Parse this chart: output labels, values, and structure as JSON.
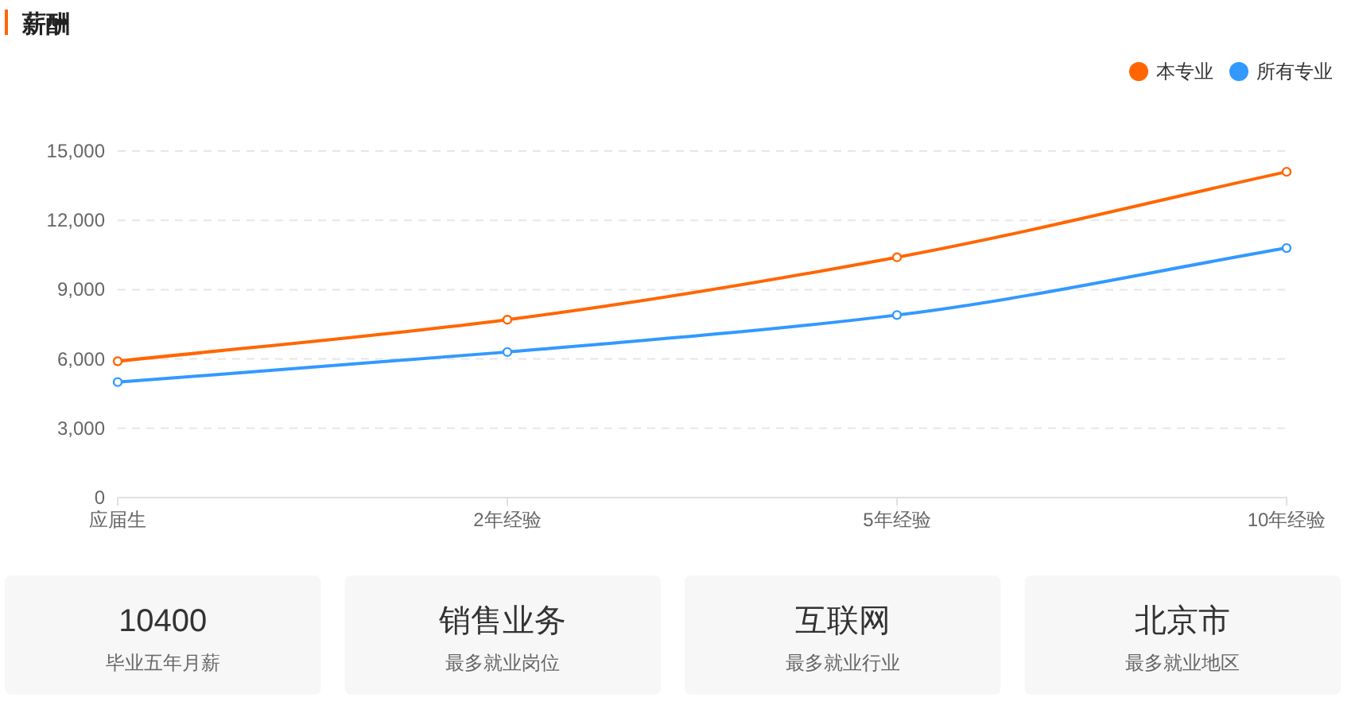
{
  "chart_data": [
    {
      "type": "line",
      "title": "薪酬",
      "categories": [
        "应届生",
        "2年经验",
        "5年经验",
        "10年经验"
      ],
      "series": [
        {
          "name": "本专业",
          "color": "#ff6600",
          "values": [
            5900,
            7700,
            10400,
            14100
          ]
        },
        {
          "name": "所有专业",
          "color": "#3399ff",
          "values": [
            5000,
            6300,
            7900,
            10800
          ]
        }
      ],
      "ylim": [
        0,
        15000
      ],
      "yticks": [
        0,
        {
          "value": 3000,
          "label": "3,000"
        },
        {
          "value": 6000,
          "label": "6,000"
        },
        {
          "value": 9000,
          "label": "9,000"
        },
        {
          "value": 12000,
          "label": "12,000"
        },
        {
          "value": 15000,
          "label": "15,000"
        }
      ],
      "grid": "y",
      "legend": "top right",
      "marker": "circle",
      "line_style": "solid"
    },
    {
      "type": "other",
      "annotations": [
        "10400",
        "毕业五年月薪",
        "销售业务",
        "最多就业岗位",
        "互联网",
        "最多就业行业",
        "北京市",
        "最多就业地区"
      ]
    }
  ]
}
